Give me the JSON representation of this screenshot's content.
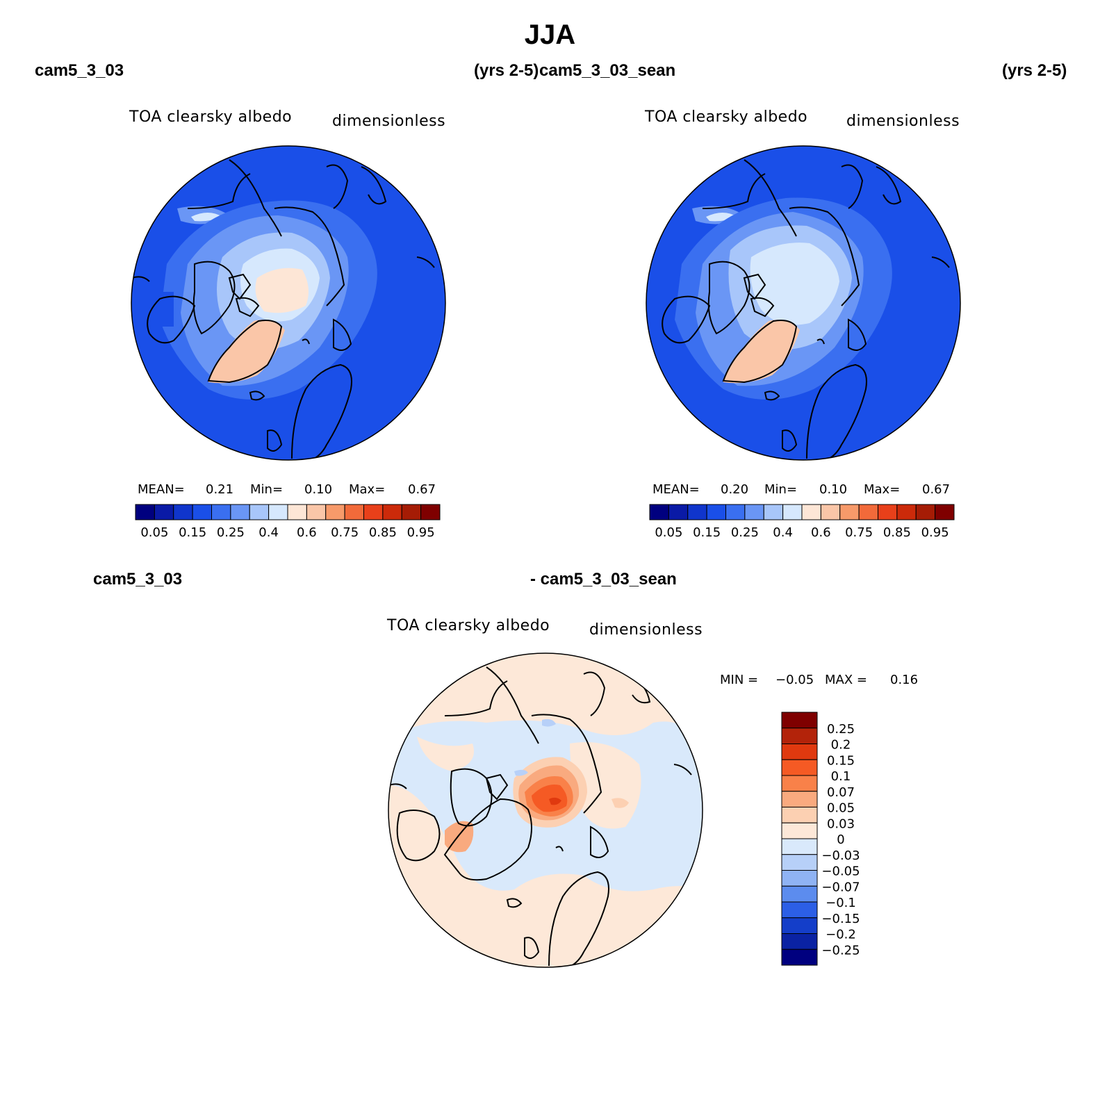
{
  "title": "JJA",
  "panels": [
    {
      "case_left": "cam5_3_03",
      "years": "(yrs 2-5)",
      "variable": "TOA clearsky albedo",
      "units": "dimensionless",
      "stats": {
        "mean_label": "MEAN=",
        "mean": "0.21",
        "min_label": "Min=",
        "min": "0.10",
        "max_label": "Max=",
        "max": "0.67"
      }
    },
    {
      "case_left": "cam5_3_03_sean",
      "years": "(yrs 2-5)",
      "variable": "TOA clearsky albedo",
      "units": "dimensionless",
      "stats": {
        "mean_label": "MEAN=",
        "mean": "0.20",
        "min_label": "Min=",
        "min": "0.10",
        "max_label": "Max=",
        "max": "0.67"
      }
    }
  ],
  "diff_panel": {
    "case_a": "cam5_3_03",
    "case_b": "- cam5_3_03_sean",
    "variable": "TOA clearsky albedo",
    "units": "dimensionless",
    "stats": {
      "min_label": "MIN =",
      "min": "−0.05",
      "max_label": "MAX =",
      "max": "0.16"
    }
  },
  "colorbar_abs": {
    "colors": [
      "#00007f",
      "#0a1aa6",
      "#1035cc",
      "#1a4fe8",
      "#3a6ff0",
      "#6a96f5",
      "#a8c6fa",
      "#d6e8fd",
      "#fde6d6",
      "#fac6a8",
      "#f79a6a",
      "#f26a3a",
      "#e8401a",
      "#cc2a0a",
      "#a51c05",
      "#7f0000"
    ],
    "labels": [
      "0.05",
      "0.15",
      "0.25",
      "0.4",
      "0.6",
      "0.75",
      "0.85",
      "0.95"
    ]
  },
  "colorbar_diff": {
    "colors": [
      "#7f0000",
      "#b3230a",
      "#e0390f",
      "#f55a24",
      "#f98149",
      "#f9aa7f",
      "#fcd0b2",
      "#fde8d8",
      "#d9e9fb",
      "#b7d0f8",
      "#8fb3f4",
      "#5c8cee",
      "#2c5fe6",
      "#143ec9",
      "#0a22a3",
      "#00007f"
    ],
    "labels": [
      "0.25",
      "0.2",
      "0.15",
      "0.1",
      "0.07",
      "0.05",
      "0.03",
      "0",
      "−0.03",
      "−0.05",
      "−0.07",
      "−0.1",
      "−0.15",
      "−0.2",
      "−0.25"
    ]
  }
}
